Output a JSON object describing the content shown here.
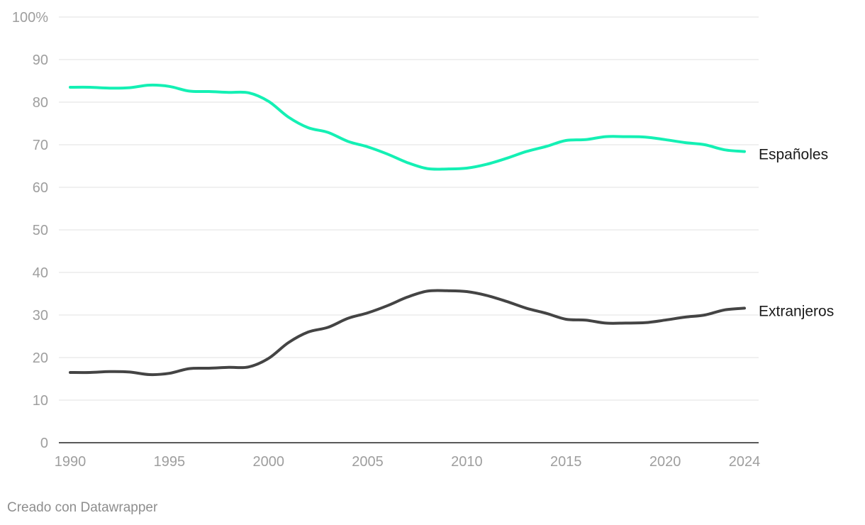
{
  "chart_data": {
    "type": "line",
    "title": "",
    "xlabel": "",
    "ylabel": "",
    "xlim": [
      1990,
      2024
    ],
    "ylim": [
      0,
      100
    ],
    "grid": true,
    "legend": "direct labels at line ends (right)",
    "x_ticks": [
      "1990",
      "1995",
      "2000",
      "2005",
      "2010",
      "2015",
      "2020",
      "2024"
    ],
    "y_ticks": [
      "0",
      "10",
      "20",
      "30",
      "40",
      "50",
      "60",
      "70",
      "80",
      "90",
      "100%"
    ],
    "x": [
      1990,
      1991,
      1992,
      1993,
      1994,
      1995,
      1996,
      1997,
      1998,
      1999,
      2000,
      2001,
      2002,
      2003,
      2004,
      2005,
      2006,
      2007,
      2008,
      2009,
      2010,
      2011,
      2012,
      2013,
      2014,
      2015,
      2016,
      2017,
      2018,
      2019,
      2020,
      2021,
      2022,
      2023,
      2024
    ],
    "series": [
      {
        "name": "Españoles",
        "color": "#14f0b4",
        "values": [
          83.5,
          83.5,
          83.3,
          83.4,
          84.0,
          83.7,
          82.6,
          82.5,
          82.3,
          82.2,
          80.2,
          76.5,
          74.0,
          72.9,
          70.8,
          69.5,
          67.8,
          65.8,
          64.4,
          64.3,
          64.5,
          65.4,
          66.8,
          68.4,
          69.6,
          71.0,
          71.2,
          71.9,
          71.9,
          71.8,
          71.2,
          70.5,
          70.0,
          68.8,
          68.4
        ]
      },
      {
        "name": "Extranjeros",
        "color": "#444444",
        "values": [
          16.5,
          16.5,
          16.7,
          16.6,
          16.0,
          16.3,
          17.4,
          17.5,
          17.7,
          17.8,
          19.8,
          23.5,
          26.0,
          27.1,
          29.2,
          30.5,
          32.2,
          34.2,
          35.6,
          35.7,
          35.5,
          34.6,
          33.2,
          31.6,
          30.4,
          29.0,
          28.8,
          28.1,
          28.1,
          28.2,
          28.8,
          29.5,
          30.0,
          31.2,
          31.6
        ]
      }
    ]
  },
  "credit": "Creado con Datawrapper"
}
